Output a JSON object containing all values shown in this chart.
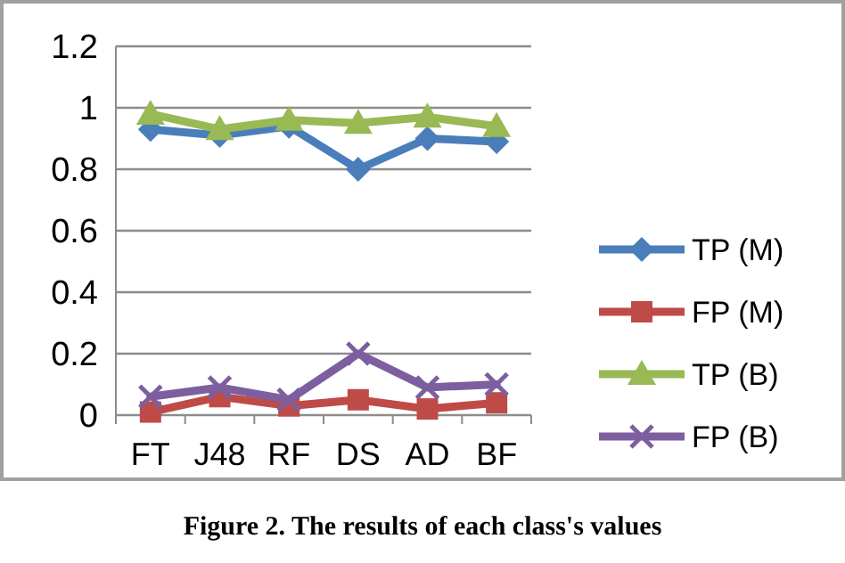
{
  "chart_data": {
    "type": "line",
    "categories": [
      "FT",
      "J48",
      "RF",
      "DS",
      "AD",
      "BF"
    ],
    "series": [
      {
        "name": "TP (M)",
        "color": "#4a7ebb",
        "marker": "diamond",
        "values": [
          0.93,
          0.91,
          0.94,
          0.8,
          0.9,
          0.89
        ]
      },
      {
        "name": "FP (M)",
        "color": "#be4b48",
        "marker": "square",
        "values": [
          0.01,
          0.06,
          0.03,
          0.05,
          0.02,
          0.04
        ]
      },
      {
        "name": "TP (B)",
        "color": "#98b954",
        "marker": "triangle",
        "values": [
          0.98,
          0.93,
          0.96,
          0.95,
          0.97,
          0.94
        ]
      },
      {
        "name": "FP (B)",
        "color": "#7d5fa0",
        "marker": "cross",
        "values": [
          0.06,
          0.09,
          0.05,
          0.2,
          0.09,
          0.1
        ]
      }
    ],
    "ylim": [
      0,
      1.2
    ],
    "yticks": [
      0,
      0.2,
      0.4,
      0.6,
      0.8,
      1,
      1.2
    ],
    "grid": "y",
    "legend": "right",
    "annotations": [
      "Figure 2. The results of each class's values"
    ]
  }
}
